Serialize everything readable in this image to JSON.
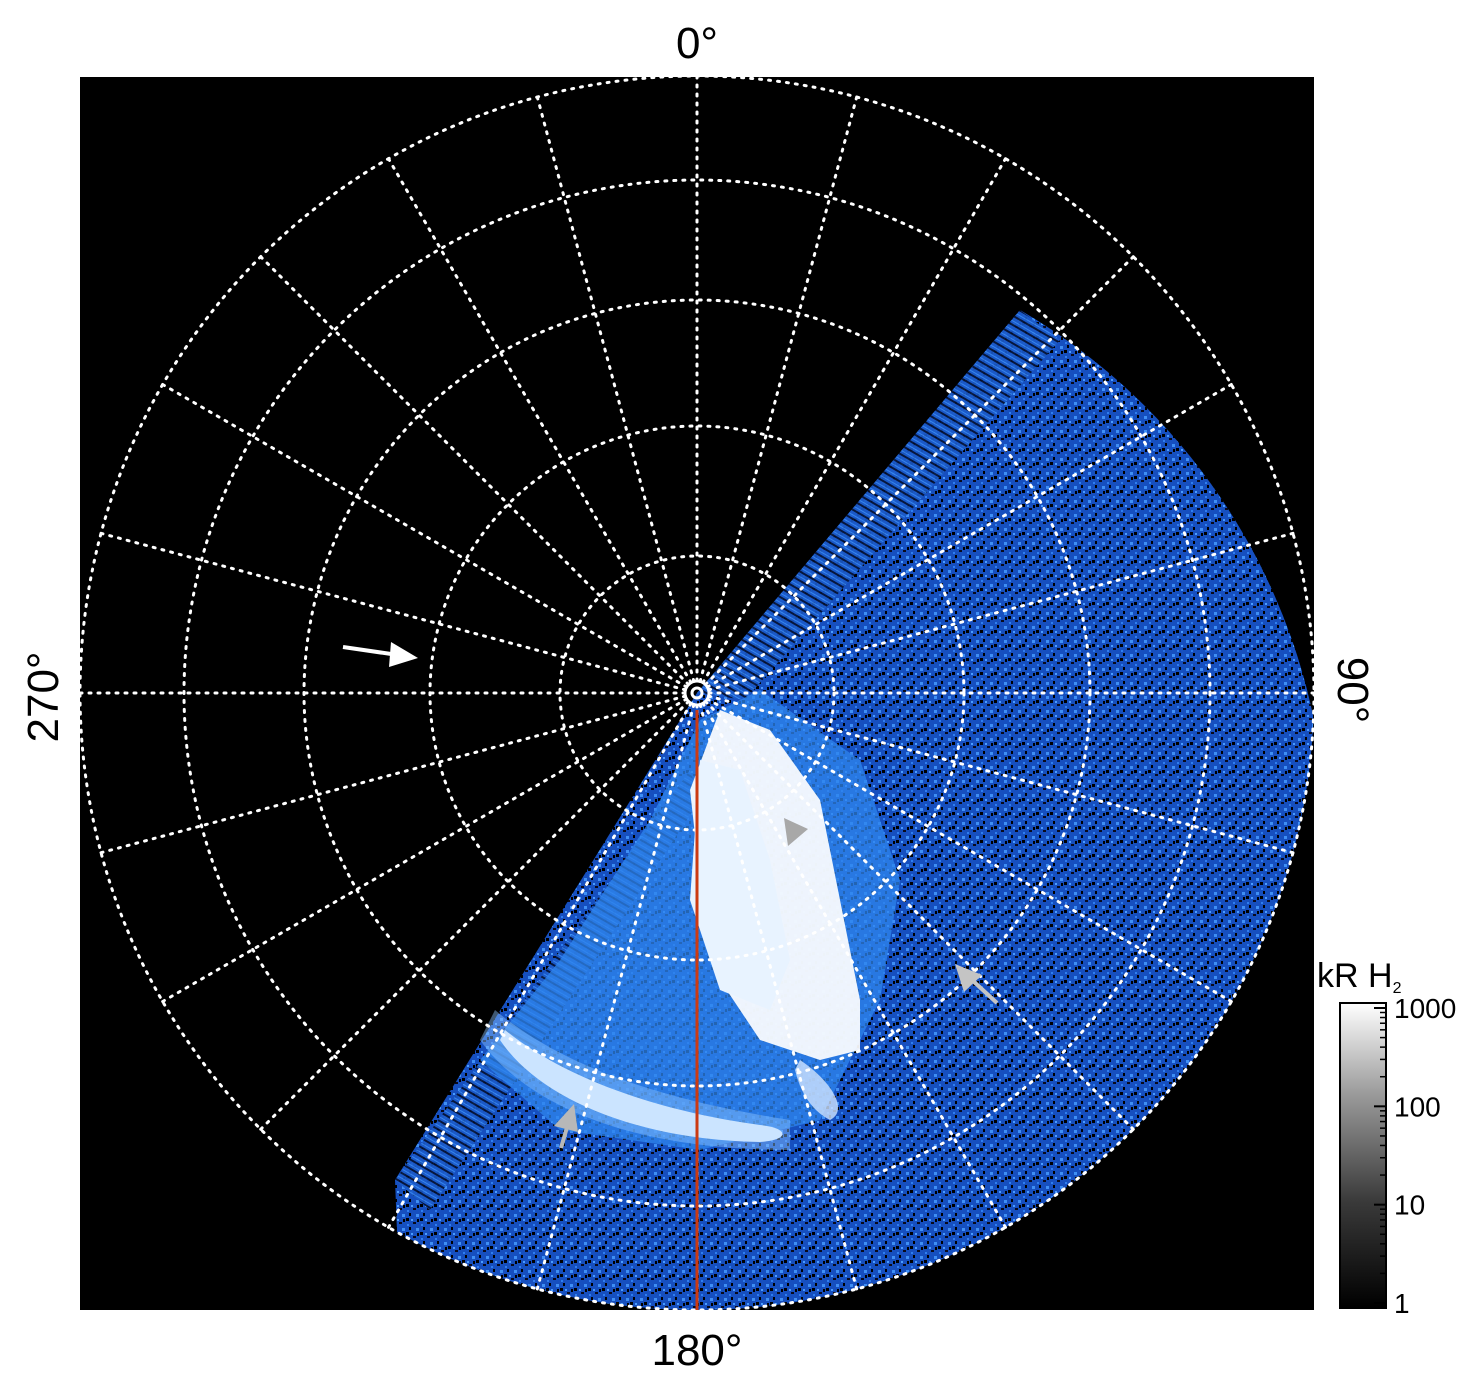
{
  "figure": {
    "longitude_labels": {
      "top": "0°",
      "bottom": "180°",
      "left": "270°",
      "right": "90°"
    },
    "colorbar": {
      "title": "kR H",
      "title_subscript": "2",
      "tick_labels": [
        "1000",
        "100",
        "10",
        "1"
      ],
      "tick_values": [
        1000,
        100,
        10,
        1
      ],
      "scale": "log"
    },
    "colors": {
      "background": "#000000",
      "grid": "#ffffff",
      "aurora_faint": "#1e5fd6",
      "aurora_mid": "#3c8ff0",
      "aurora_bright": "#ffffff",
      "meridian_line": "#cc3a12",
      "arrow_white": "#ffffff",
      "arrow_grey": "#b4b4b4"
    },
    "annotations": [
      {
        "kind": "arrow",
        "color": "white"
      },
      {
        "kind": "arrowhead",
        "color": "grey"
      },
      {
        "kind": "arrow",
        "color": "grey"
      },
      {
        "kind": "arrow",
        "color": "grey"
      }
    ]
  }
}
